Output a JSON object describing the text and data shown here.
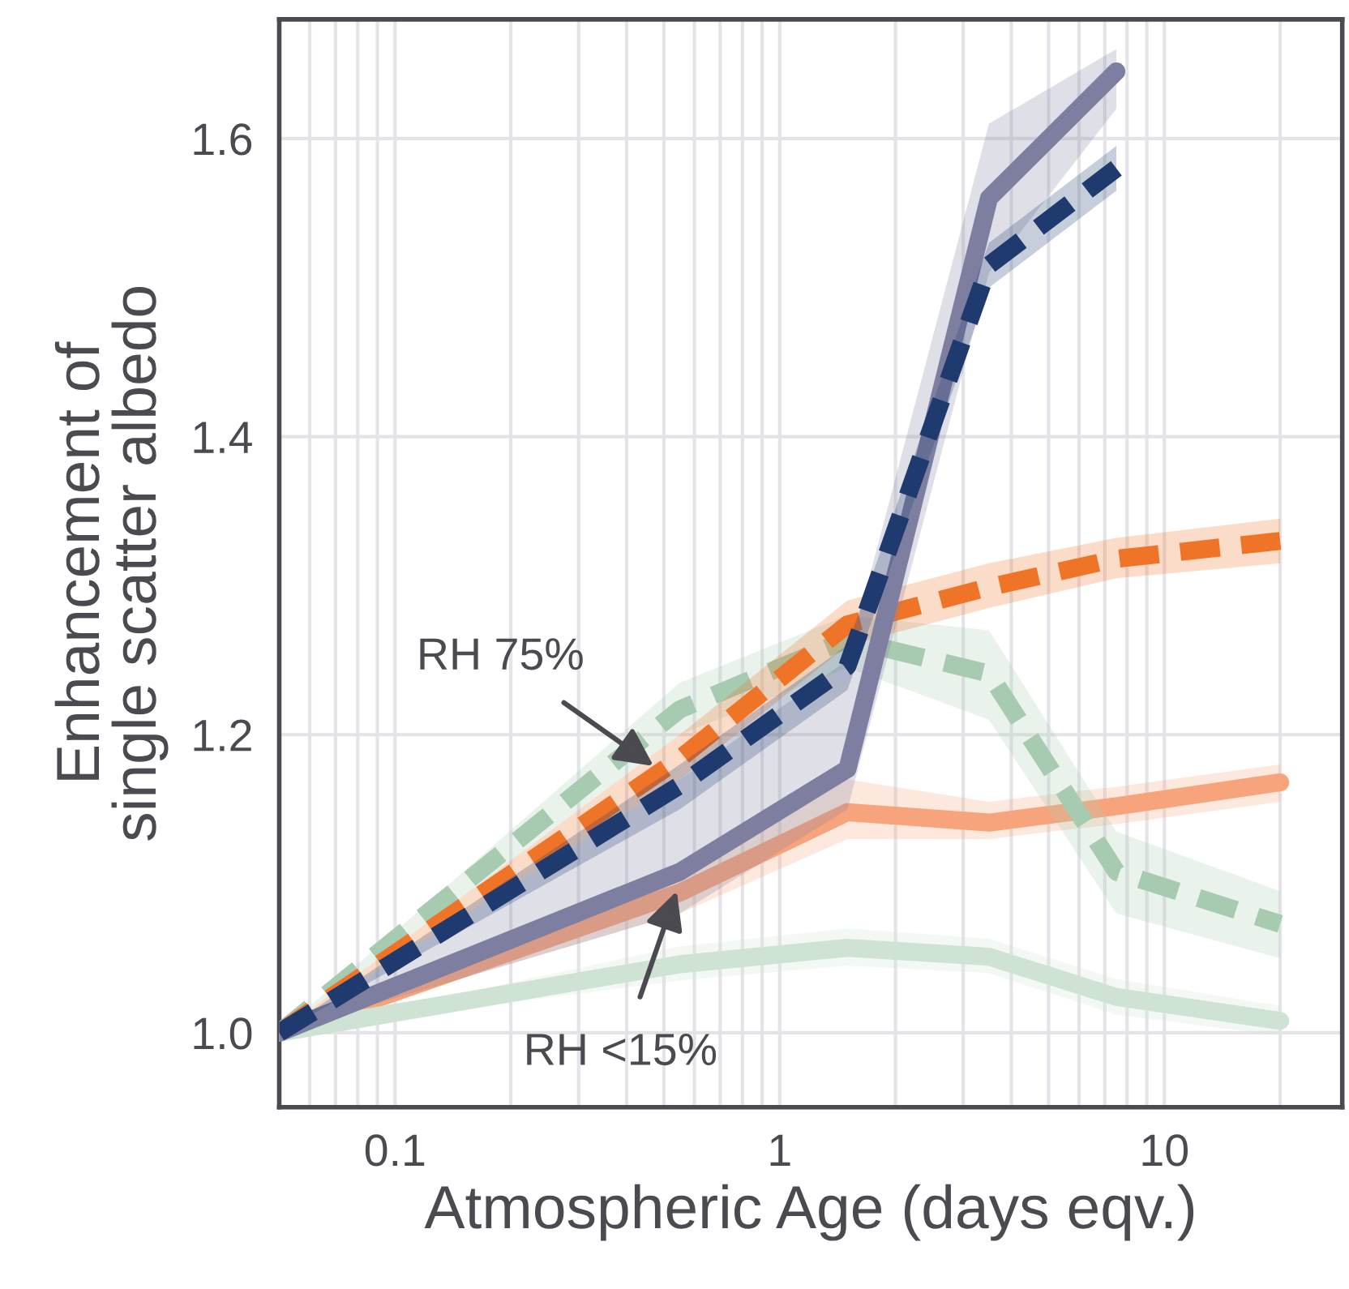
{
  "chart_data": {
    "type": "line",
    "xlabel": "Atmospheric Age (days eqv.)",
    "ylabel": "Enhancement of\nsingle scatter albedo",
    "log": "x",
    "xlim": [
      0.05,
      29
    ],
    "xticks": [
      0.1,
      1,
      10
    ],
    "ylim": [
      0.95,
      1.68
    ],
    "yticks": [
      {
        "value": 1.0,
        "label": "1.0"
      },
      1.2,
      1.4,
      1.6
    ],
    "grid": true,
    "x": [
      0.05,
      0.55,
      1.5,
      3.5,
      7.5,
      20
    ],
    "series": [
      {
        "color": "#f7a47c",
        "line_style": "solid",
        "values": [
          1.0,
          1.094,
          1.148,
          1.141,
          1.152,
          1.168
        ],
        "lower": [
          1.0,
          1.08,
          1.13,
          1.13,
          1.14,
          1.155
        ],
        "upper": [
          1.0,
          1.11,
          1.17,
          1.155,
          1.165,
          1.18
        ]
      },
      {
        "color": "#cfe3d4",
        "line_style": "solid",
        "values": [
          1.0,
          1.046,
          1.057,
          1.051,
          1.024,
          1.008
        ],
        "lower": [
          1.0,
          1.035,
          1.045,
          1.04,
          1.012,
          0.998
        ],
        "upper": [
          1.0,
          1.058,
          1.07,
          1.063,
          1.036,
          1.018
        ]
      },
      {
        "color": "#a6cbb0",
        "line_style": "dashed",
        "values": [
          1.0,
          1.217,
          1.264,
          1.241,
          1.108,
          1.073
        ],
        "lower": [
          1.0,
          1.2,
          1.245,
          1.21,
          1.08,
          1.05
        ],
        "upper": [
          1.0,
          1.235,
          1.28,
          1.27,
          1.135,
          1.095
        ]
      },
      {
        "color": "#f07428",
        "line_style": "dashed",
        "values": [
          1.0,
          1.184,
          1.274,
          1.299,
          1.318,
          1.33
        ],
        "lower": [
          1.0,
          1.17,
          1.26,
          1.285,
          1.305,
          1.315
        ],
        "upper": [
          1.0,
          1.2,
          1.29,
          1.315,
          1.332,
          1.345
        ]
      },
      {
        "color": "#7e7fa0",
        "line_style": "solid",
        "values": [
          1.0,
          1.108,
          1.177,
          1.56,
          1.645,
          null
        ],
        "lower": [
          1.0,
          1.08,
          1.15,
          1.51,
          1.62,
          null
        ],
        "upper": [
          1.0,
          1.17,
          1.25,
          1.61,
          1.66,
          null
        ]
      },
      {
        "color": "#1f3a6e",
        "line_style": "dashed",
        "values": [
          1.0,
          1.166,
          1.246,
          1.515,
          1.58,
          null
        ],
        "lower": [
          1.0,
          1.15,
          1.23,
          1.5,
          1.565,
          null
        ],
        "upper": [
          1.0,
          1.18,
          1.26,
          1.53,
          1.595,
          null
        ]
      }
    ],
    "annotations": [
      {
        "text": "RH 75%",
        "x": 0.47,
        "y": 1.179
      },
      {
        "text": "RH <15%",
        "x": 0.54,
        "y": 1.095
      }
    ]
  }
}
